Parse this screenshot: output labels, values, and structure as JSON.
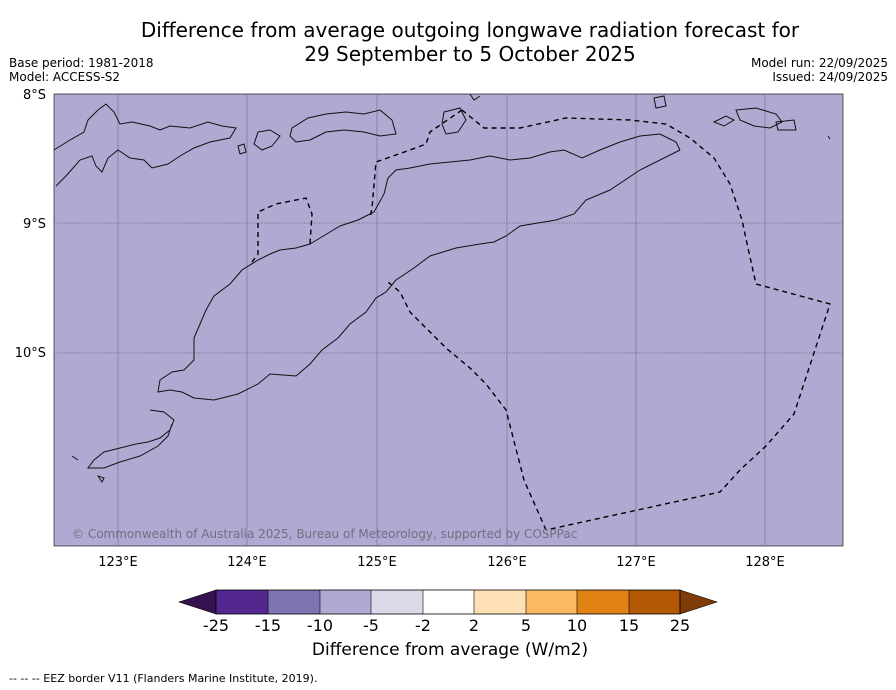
{
  "title": {
    "line1": "Difference from average outgoing longwave radiation forecast for",
    "line2": "29 September to 5 October 2025"
  },
  "meta": {
    "base_period": "Base period: 1981-2018",
    "model": "Model: ACCESS-S2",
    "model_run": "Model run: 22/09/2025",
    "issued": "Issued: 24/09/2025"
  },
  "map": {
    "fill_color": "#b0aad2",
    "lat_labels": [
      "8°S",
      "9°S",
      "10°S"
    ],
    "lon_labels": [
      "123°E",
      "124°E",
      "125°E",
      "126°E",
      "127°E",
      "128°E"
    ],
    "copyright": "© Commonwealth of Australia 2025, Bureau of Meteorology, supported by COSPPac"
  },
  "colorbar": {
    "title": "Difference from average (W/m2)",
    "ticks": [
      "-25",
      "-15",
      "-10",
      "-5",
      "-2",
      "2",
      "5",
      "10",
      "15",
      "25"
    ],
    "colors": [
      "#33124e",
      "#54278f",
      "#7e72b0",
      "#b0aad2",
      "#dadaeb",
      "#ffffff",
      "#fee0b6",
      "#fdb863",
      "#e08214",
      "#b35806",
      "#7f3b08"
    ]
  },
  "footer": "--  --  -- EEZ border V11 (Flanders Marine Institute, 2019)."
}
